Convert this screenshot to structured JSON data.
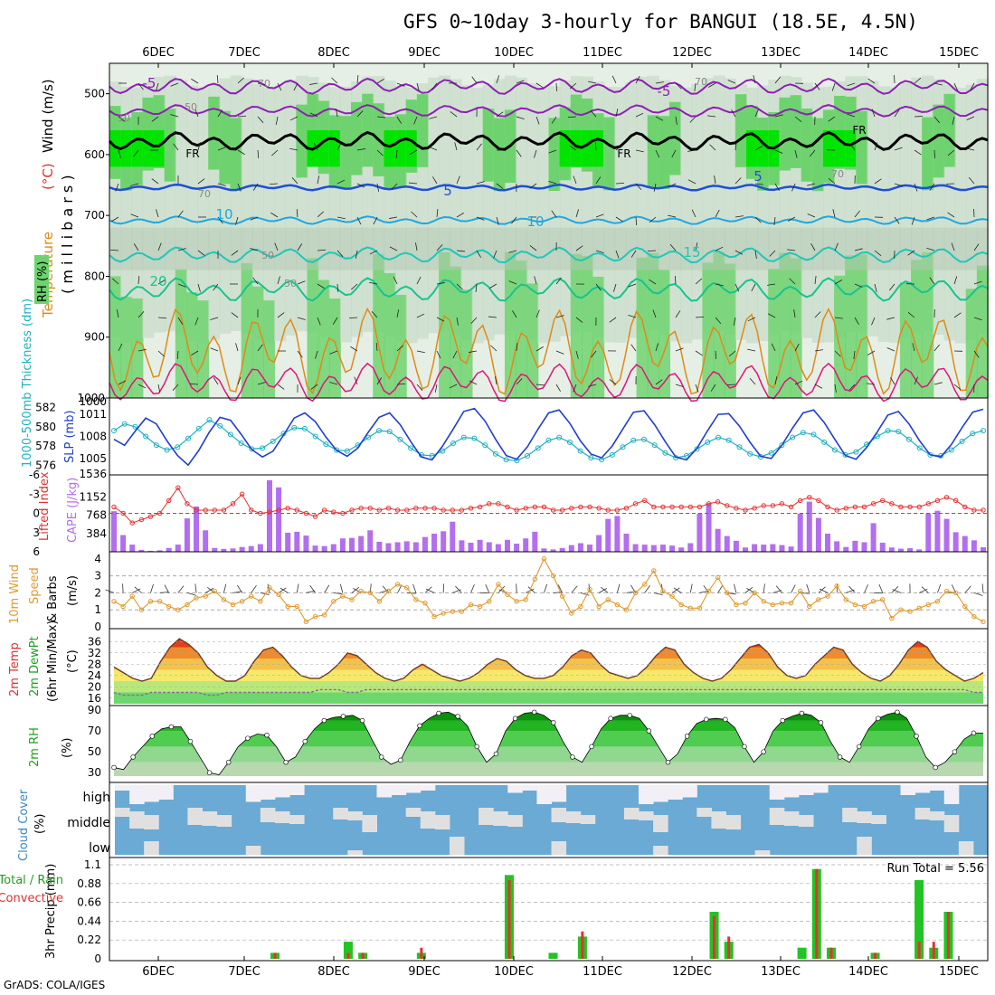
{
  "title": "GFS 0~10day 3-hourly for BANGUI (18.5E, 4.5N)",
  "footer": "GrADS: COLA/IGES",
  "chart_data": [
    {
      "type": "heatmap",
      "panel": "upper-air",
      "x_ticks": [
        "6DEC",
        "7DEC",
        "8DEC",
        "9DEC",
        "10DEC",
        "11DEC",
        "12DEC",
        "13DEC",
        "14DEC",
        "15DEC"
      ],
      "y_ticks": [
        "500",
        "600",
        "700",
        "800",
        "900",
        "1000"
      ],
      "ylabel_parts": [
        "RH (%)",
        "Temperature",
        "(°C)",
        "Wind (m/s)",
        "( m i l l i b a r s )"
      ],
      "isotherm_labels": [
        "-5",
        "-5",
        "FR",
        "FR",
        "FR",
        "5",
        "5",
        "10",
        "10",
        "15",
        "20"
      ],
      "rh_labels": [
        "70",
        "50",
        "10",
        "70",
        "50",
        "50",
        "70",
        "70"
      ],
      "ylim": [
        450,
        1000
      ],
      "colors": {
        "rh_low": "#e6efe6",
        "rh_mid": "#c8dcc8",
        "rh_high": "#b4c8b4",
        "rh_wet": "#6ed36e",
        "rh_sat": "#00e400",
        "minus5": "#8e1fb3",
        "freezing": "#000000",
        "plus5": "#1f4fd6",
        "plus10": "#1fa8e0",
        "plus15": "#1fc7b8",
        "plus20": "#16c48f",
        "warm": "#e08a18",
        "hot": "#e0157a"
      }
    },
    {
      "type": "line",
      "panel": "slp-thickness",
      "ylabel_left": "1000-500mb Thickness (dm)",
      "ylabel_right": "SLP (mb)",
      "left_ticks": [
        "582",
        "580",
        "578",
        "576"
      ],
      "right_ticks": [
        "1011",
        "1008",
        "1005"
      ],
      "series": [
        {
          "name": "SLP (mb)",
          "color": "#1f3fd0",
          "values": [
            1007.6,
            1006.8,
            1008.7,
            1010.5,
            1009.7,
            1007.4,
            1005.4,
            1004.1,
            1006.1,
            1008.6,
            1010.6,
            1010.2,
            1008.3,
            1006.2,
            1005.2,
            1006.0,
            1008.2,
            1010.5,
            1011.2,
            1010.0,
            1007.9,
            1006.1,
            1005.3,
            1006.4,
            1008.6,
            1010.6,
            1011.2,
            1009.6,
            1007.3,
            1005.2,
            1004.8,
            1006.7,
            1009.0,
            1011.4,
            1011.8,
            1010.1,
            1007.6,
            1005.4,
            1004.9,
            1006.6,
            1009.0,
            1011.2,
            1011.6,
            1009.8,
            1007.4,
            1005.6,
            1005.1,
            1006.7,
            1009.0,
            1011.3,
            1011.5,
            1009.6,
            1007.3,
            1005.2,
            1004.8,
            1006.4,
            1008.8,
            1011.0,
            1011.1,
            1009.4,
            1007.2,
            1005.3,
            1005.0,
            1006.8,
            1009.1,
            1011.2,
            1011.6,
            1009.9,
            1007.6,
            1005.4,
            1004.9,
            1006.5,
            1008.6,
            1010.9,
            1011.4,
            1009.7,
            1007.4,
            1005.5,
            1005.2,
            1006.9,
            1009.2,
            1011.3,
            1011.7
          ]
        },
        {
          "name": "1000-500mb Thickness (dm)",
          "color": "#1fb0c0",
          "values": [
            579.6,
            580.3,
            580.0,
            579.0,
            578.1,
            577.6,
            577.9,
            578.8,
            579.8,
            580.7,
            580.1,
            579.2,
            578.3,
            577.7,
            577.8,
            578.5,
            579.3,
            579.9,
            579.8,
            579.0,
            578.2,
            577.6,
            577.5,
            578.1,
            578.9,
            579.6,
            579.5,
            578.7,
            577.8,
            577.1,
            577.0,
            577.5,
            578.3,
            578.9,
            578.8,
            578.1,
            577.2,
            576.6,
            576.5,
            577.0,
            577.8,
            578.6,
            578.9,
            578.4,
            577.5,
            576.8,
            576.6,
            577.1,
            577.9,
            578.6,
            578.7,
            578.1,
            577.3,
            576.8,
            577.0,
            577.7,
            578.4,
            578.9,
            578.6,
            577.9,
            577.2,
            576.9,
            577.3,
            578.1,
            578.9,
            579.4,
            579.2,
            578.4,
            577.6,
            577.1,
            577.4,
            578.2,
            579.0,
            579.6,
            579.5,
            578.7,
            577.8,
            577.1,
            577.0,
            577.6,
            578.5,
            579.3,
            579.6
          ]
        }
      ]
    },
    {
      "type": "bar",
      "panel": "cape-li",
      "ylabel_left": "Lifted Index",
      "ylabel_right": "CAPE (J/kg)",
      "left_ticks": [
        "-6",
        "-3",
        "0",
        "3",
        "6"
      ],
      "right_ticks": [
        "1536",
        "1152",
        "768",
        "384"
      ],
      "series": [
        {
          "name": "CAPE (J/kg)",
          "color": "#b36ef0",
          "values": [
            850,
            350,
            150,
            40,
            20,
            30,
            80,
            150,
            700,
            950,
            450,
            80,
            60,
            70,
            100,
            120,
            160,
            1500,
            1350,
            400,
            420,
            340,
            130,
            120,
            160,
            280,
            290,
            330,
            450,
            210,
            180,
            200,
            220,
            200,
            310,
            380,
            430,
            630,
            240,
            190,
            250,
            200,
            160,
            250,
            170,
            280,
            420,
            70,
            50,
            80,
            140,
            180,
            150,
            350,
            690,
            750,
            380,
            160,
            150,
            140,
            150,
            130,
            90,
            180,
            800,
            1020,
            480,
            330,
            230,
            90,
            160,
            150,
            160,
            140,
            110,
            800,
            1050,
            710,
            380,
            220,
            100,
            230,
            200,
            600,
            190,
            90,
            65,
            75,
            50,
            800,
            860,
            690,
            410,
            330,
            240,
            95
          ]
        },
        {
          "name": "Lifted Index",
          "color": "#e83030",
          "values": [
            -1.0,
            0.0,
            1.5,
            1.0,
            0.5,
            0.0,
            -2.0,
            -4.0,
            -1.5,
            -0.5,
            -0.5,
            -0.5,
            -0.5,
            -1.5,
            -3.0,
            -0.5,
            0.0,
            -0.2,
            -0.5,
            -0.8,
            -0.5,
            0.0,
            0.5,
            -0.5,
            -0.2,
            0.0,
            -0.5,
            -0.8,
            -0.8,
            -0.5,
            -0.8,
            -0.5,
            -0.5,
            -0.8,
            -0.8,
            -0.8,
            -0.5,
            -0.5,
            -0.5,
            -0.8,
            -1.0,
            -1.5,
            -1.5,
            -1.0,
            -0.5,
            -0.8,
            -1.0,
            -1.0,
            -0.5,
            -0.5,
            -0.8,
            -1.0,
            -1.0,
            -0.8,
            -0.5,
            -0.5,
            -0.8,
            -1.5,
            -2.0,
            -1.0,
            -1.0,
            -1.0,
            -1.0,
            -1.0,
            -1.0,
            -1.5,
            -1.8,
            -1.2,
            -0.8,
            -0.5,
            -0.8,
            -1.2,
            -1.2,
            -1.5,
            -1.0,
            -2.0,
            -2.5,
            -2.0,
            -1.0,
            -0.5,
            -0.8,
            -1.0,
            -1.0,
            -1.5,
            -2.0,
            -1.5,
            -1.0,
            -1.0,
            -1.0,
            -1.5,
            -2.0,
            -2.5,
            -2.0,
            -1.0,
            -0.5,
            -0.5
          ]
        }
      ]
    },
    {
      "type": "line",
      "panel": "10m-wind",
      "ylabel_parts": [
        "10m Wind",
        "Speed",
        "& Barbs",
        "(m/s)"
      ],
      "y_ticks": [
        "0",
        "1",
        "2",
        "3",
        "4"
      ],
      "series": [
        {
          "name": "10m Wind Speed (m/s)",
          "color": "#e09a30",
          "values": [
            1.5,
            1.2,
            1.8,
            1.0,
            1.5,
            1.5,
            1.2,
            1.0,
            1.3,
            1.7,
            1.8,
            2.1,
            1.6,
            1.3,
            1.5,
            1.8,
            1.5,
            2.3,
            1.9,
            1.2,
            1.2,
            0.3,
            0.6,
            0.7,
            1.5,
            1.8,
            1.6,
            2.1,
            2.0,
            1.5,
            2.1,
            2.5,
            2.3,
            1.6,
            1.4,
            0.6,
            0.8,
            0.9,
            0.9,
            1.3,
            1.2,
            1.5,
            2.5,
            1.9,
            1.5,
            1.6,
            2.8,
            4.0,
            3.0,
            1.8,
            0.8,
            1.2,
            2.2,
            1.2,
            1.6,
            1.3,
            1.0,
            2.0,
            2.5,
            3.3,
            2.1,
            1.8,
            1.3,
            1.1,
            1.1,
            2.1,
            2.9,
            2.0,
            1.3,
            1.4,
            2.0,
            1.5,
            1.3,
            1.4,
            1.4,
            2.1,
            1.2,
            1.6,
            1.8,
            2.4,
            1.6,
            1.3,
            1.2,
            1.5,
            1.6,
            0.5,
            1.0,
            0.9,
            1.1,
            1.3,
            1.5,
            2.1,
            2.0,
            1.2,
            0.6,
            0.3
          ]
        }
      ]
    },
    {
      "type": "area",
      "panel": "2m-temp",
      "ylabel_parts": [
        "2m Temp",
        "2m DewPt",
        "(6hr Min/Max)",
        "(°C)"
      ],
      "y_ticks": [
        "36",
        "32",
        "28",
        "24",
        "20",
        "16"
      ],
      "series": [
        {
          "name": "2m Temp",
          "values": [
            27,
            25,
            23,
            22,
            23,
            29,
            34,
            37,
            35,
            32,
            27,
            24,
            22,
            22,
            24,
            29,
            33,
            34,
            31,
            27,
            24,
            23,
            23,
            25,
            28,
            32,
            31,
            28,
            25,
            23,
            22,
            23,
            26,
            28,
            26,
            24,
            23,
            22,
            23,
            25,
            28,
            30,
            29,
            26,
            24,
            23,
            23,
            24,
            27,
            31,
            33,
            32,
            28,
            25,
            24,
            23,
            24,
            27,
            31,
            34,
            33,
            28,
            25,
            23,
            22,
            23,
            26,
            30,
            34,
            35,
            32,
            27,
            24,
            23,
            24,
            28,
            31,
            34,
            33,
            28,
            25,
            23,
            22,
            24,
            28,
            33,
            36,
            34,
            29,
            26,
            24,
            22,
            23,
            25
          ]
        },
        {
          "name": "2m DewPt",
          "values": [
            18,
            17,
            17,
            17,
            18,
            18,
            18,
            18,
            18,
            18,
            17,
            17,
            18,
            18,
            18,
            18,
            18,
            18,
            18,
            18,
            18,
            18,
            19,
            19,
            19,
            18,
            18,
            19,
            19,
            19,
            19,
            19,
            19,
            19,
            19,
            19,
            19,
            19,
            19,
            19,
            19,
            19,
            19,
            19,
            19,
            19,
            19,
            19,
            19,
            19,
            19,
            19,
            19,
            19,
            19,
            19,
            19,
            19,
            19,
            19,
            19,
            19,
            19,
            19,
            19,
            19,
            19,
            19,
            19,
            19,
            19,
            19,
            19,
            19,
            19,
            19,
            19,
            19,
            19,
            19,
            19,
            19,
            19,
            19,
            19,
            19,
            19,
            19,
            19,
            19,
            19,
            19,
            18,
            18
          ]
        }
      ]
    },
    {
      "type": "area",
      "panel": "2m-rh",
      "ylabel": "2m RH",
      "yunit": "(%)",
      "y_ticks": [
        "90",
        "70",
        "50",
        "30"
      ],
      "series": [
        {
          "name": "2m RH",
          "values": [
            35,
            33,
            45,
            55,
            65,
            72,
            74,
            74,
            60,
            45,
            30,
            28,
            40,
            55,
            63,
            67,
            66,
            55,
            40,
            45,
            60,
            72,
            80,
            83,
            84,
            85,
            80,
            62,
            45,
            38,
            42,
            60,
            75,
            82,
            87,
            88,
            84,
            75,
            55,
            40,
            48,
            70,
            82,
            87,
            88,
            85,
            78,
            60,
            45,
            40,
            55,
            72,
            82,
            85,
            85,
            82,
            70,
            55,
            40,
            48,
            65,
            77,
            81,
            82,
            81,
            73,
            55,
            40,
            50,
            70,
            80,
            84,
            87,
            85,
            78,
            60,
            45,
            40,
            55,
            72,
            82,
            86,
            88,
            82,
            65,
            45,
            35,
            40,
            50,
            62,
            68,
            68
          ]
        }
      ]
    },
    {
      "type": "bar",
      "panel": "cloud-cover",
      "ylabel": "Cloud Cover",
      "yunit": "(%)",
      "level_labels": [
        "high",
        "middle",
        "low"
      ],
      "colors": {
        "cloud": "#6aaad4",
        "clear": "#f2f0f6",
        "gap": "#e0e0e0"
      }
    },
    {
      "type": "bar",
      "panel": "precip",
      "ylabel_parts": [
        "3hr Precip (mm)",
        "Total / Rain",
        "Convective"
      ],
      "y_ticks": [
        "1.1",
        "0.88",
        "0.66",
        "0.44",
        "0.22",
        "0"
      ],
      "annotation": "Run Total = 5.56",
      "x_ticks": [
        "6DEC",
        "7DEC",
        "8DEC",
        "9DEC",
        "10DEC",
        "11DEC",
        "12DEC",
        "13DEC",
        "14DEC",
        "15DEC"
      ],
      "series": [
        {
          "name": "Total",
          "color": "#22c322",
          "values": [
            [
              11,
              0.07
            ],
            [
              16,
              0.2
            ],
            [
              17,
              0.07
            ],
            [
              21,
              0.07
            ],
            [
              27,
              0.98
            ],
            [
              30,
              0.07
            ],
            [
              32,
              0.26
            ],
            [
              41,
              0.55
            ],
            [
              42,
              0.2
            ],
            [
              47,
              0.13
            ],
            [
              48,
              1.05
            ],
            [
              49,
              0.13
            ],
            [
              52,
              0.07
            ],
            [
              55,
              0.92
            ],
            [
              56,
              0.13
            ],
            [
              57,
              0.55
            ]
          ]
        },
        {
          "name": "Convective",
          "color": "#e83030",
          "values": [
            [
              11,
              0.07
            ],
            [
              16,
              0.07
            ],
            [
              17,
              0.07
            ],
            [
              21,
              0.13
            ],
            [
              27,
              0.92
            ],
            [
              32,
              0.32
            ],
            [
              41,
              0.5
            ],
            [
              42,
              0.26
            ],
            [
              48,
              1.05
            ],
            [
              49,
              0.13
            ],
            [
              52,
              0.07
            ],
            [
              55,
              0.2
            ],
            [
              56,
              0.2
            ],
            [
              57,
              0.55
            ]
          ]
        }
      ]
    }
  ]
}
